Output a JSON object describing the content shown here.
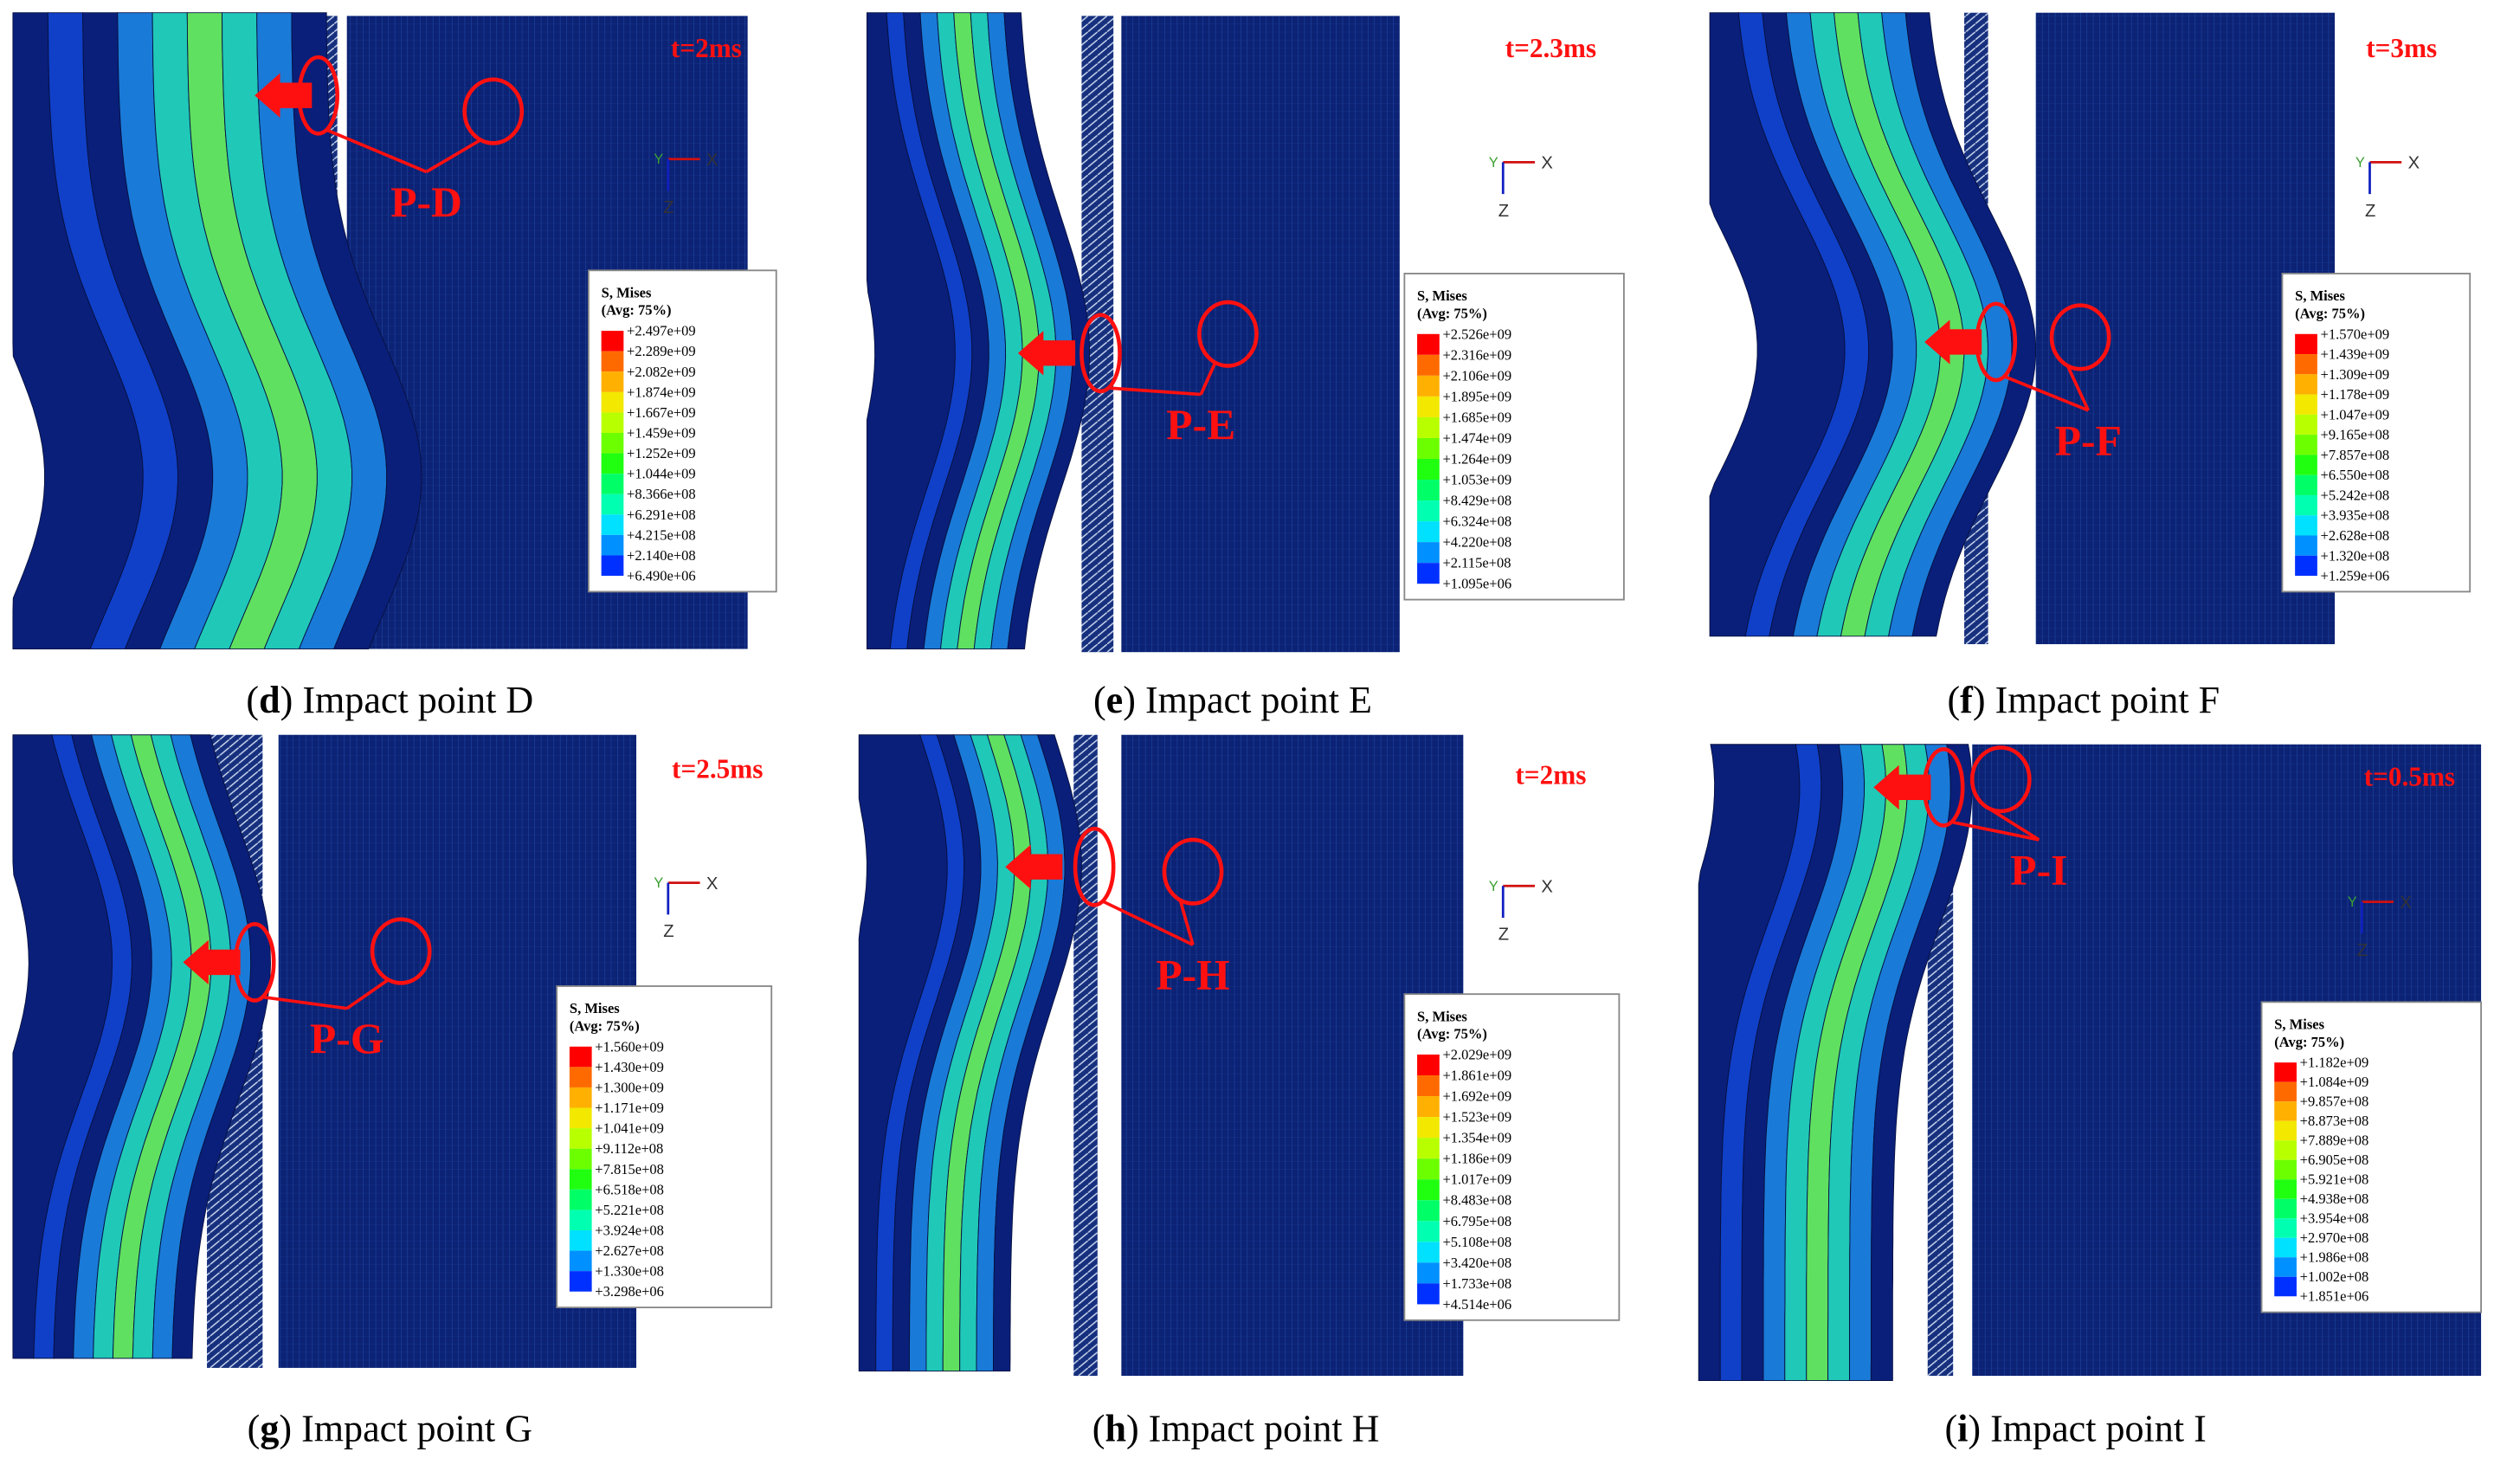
{
  "panels": [
    {
      "time": "t=2ms",
      "point_label": "P-D",
      "triad": {
        "y": "Y",
        "x": "X",
        "z": "Z"
      },
      "legend": {
        "title": "S, Mises",
        "subtitle": "(Avg: 75%)",
        "values": [
          "+2.497e+09",
          "+2.289e+09",
          "+2.082e+09",
          "+1.874e+09",
          "+1.667e+09",
          "+1.459e+09",
          "+1.252e+09",
          "+1.044e+09",
          "+8.366e+08",
          "+6.291e+08",
          "+4.215e+08",
          "+2.140e+08",
          "+6.490e+06"
        ]
      },
      "caption": {
        "open": "(",
        "letter": "d",
        "rest": ") Impact point D"
      }
    },
    {
      "time": "t=2.3ms",
      "point_label": "P-E",
      "triad": {
        "y": "Y",
        "x": "X",
        "z": "Z"
      },
      "legend": {
        "title": "S, Mises",
        "subtitle": "(Avg: 75%)",
        "values": [
          "+2.526e+09",
          "+2.316e+09",
          "+2.106e+09",
          "+1.895e+09",
          "+1.685e+09",
          "+1.474e+09",
          "+1.264e+09",
          "+1.053e+09",
          "+8.429e+08",
          "+6.324e+08",
          "+4.220e+08",
          "+2.115e+08",
          "+1.095e+06"
        ]
      },
      "caption": {
        "open": "(",
        "letter": "e",
        "rest": ") Impact point E"
      }
    },
    {
      "time": "t=3ms",
      "point_label": "P-F",
      "triad": {
        "y": "Y",
        "x": "X",
        "z": "Z"
      },
      "legend": {
        "title": "S, Mises",
        "subtitle": "(Avg: 75%)",
        "values": [
          "+1.570e+09",
          "+1.439e+09",
          "+1.309e+09",
          "+1.178e+09",
          "+1.047e+09",
          "+9.165e+08",
          "+7.857e+08",
          "+6.550e+08",
          "+5.242e+08",
          "+3.935e+08",
          "+2.628e+08",
          "+1.320e+08",
          "+1.259e+06"
        ]
      },
      "caption": {
        "open": "(",
        "letter": "f",
        "rest": ") Impact point F"
      }
    },
    {
      "time": "t=2.5ms",
      "point_label": "P-G",
      "triad": {
        "y": "Y",
        "x": "X",
        "z": "Z"
      },
      "legend": {
        "title": "S, Mises",
        "subtitle": "(Avg: 75%)",
        "values": [
          "+1.560e+09",
          "+1.430e+09",
          "+1.300e+09",
          "+1.171e+09",
          "+1.041e+09",
          "+9.112e+08",
          "+7.815e+08",
          "+6.518e+08",
          "+5.221e+08",
          "+3.924e+08",
          "+2.627e+08",
          "+1.330e+08",
          "+3.298e+06"
        ]
      },
      "caption": {
        "open": "(",
        "letter": "g",
        "rest": ") Impact point G"
      }
    },
    {
      "time": "t=2ms",
      "point_label": "P-H",
      "triad": {
        "y": "Y",
        "x": "X",
        "z": "Z"
      },
      "legend": {
        "title": "S, Mises",
        "subtitle": "(Avg: 75%)",
        "values": [
          "+2.029e+09",
          "+1.861e+09",
          "+1.692e+09",
          "+1.523e+09",
          "+1.354e+09",
          "+1.186e+09",
          "+1.017e+09",
          "+8.483e+08",
          "+6.795e+08",
          "+5.108e+08",
          "+3.420e+08",
          "+1.733e+08",
          "+4.514e+06"
        ]
      },
      "caption": {
        "open": "(",
        "letter": "h",
        "rest": ") Impact point H"
      }
    },
    {
      "time": "t=0.5ms",
      "point_label": "P-I",
      "triad": {
        "y": "Y",
        "x": "X",
        "z": "Z"
      },
      "legend": {
        "title": "S, Mises",
        "subtitle": "(Avg: 75%)",
        "values": [
          "+1.182e+09",
          "+1.084e+09",
          "+9.857e+08",
          "+8.873e+08",
          "+7.889e+08",
          "+6.905e+08",
          "+5.921e+08",
          "+4.938e+08",
          "+3.954e+08",
          "+2.970e+08",
          "+1.986e+08",
          "+1.002e+08",
          "+1.851e+06"
        ]
      },
      "caption": {
        "open": "(",
        "letter": "i",
        "rest": ") Impact point I"
      }
    }
  ]
}
